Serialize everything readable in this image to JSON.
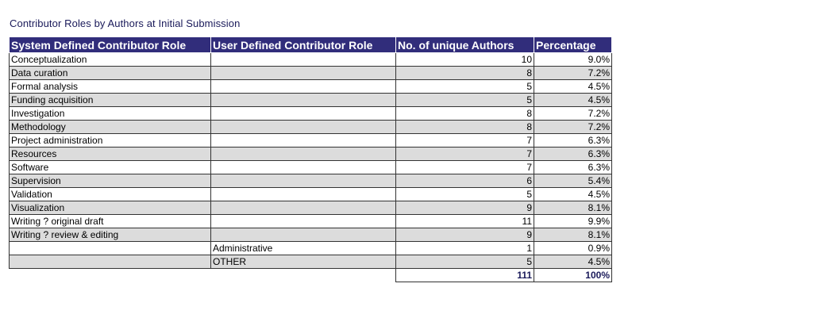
{
  "title": "Contributor Roles by Authors at Initial Submission",
  "table": {
    "headers": [
      "System Defined Contributor Role",
      "User Defined Contributor Role",
      "No. of unique Authors",
      "Percentage"
    ],
    "rows": [
      {
        "system_role": "Conceptualization",
        "user_role": "",
        "authors": "10",
        "percentage": "9.0%"
      },
      {
        "system_role": "Data curation",
        "user_role": "",
        "authors": "8",
        "percentage": "7.2%"
      },
      {
        "system_role": "Formal analysis",
        "user_role": "",
        "authors": "5",
        "percentage": "4.5%"
      },
      {
        "system_role": "Funding acquisition",
        "user_role": "",
        "authors": "5",
        "percentage": "4.5%"
      },
      {
        "system_role": "Investigation",
        "user_role": "",
        "authors": "8",
        "percentage": "7.2%"
      },
      {
        "system_role": "Methodology",
        "user_role": "",
        "authors": "8",
        "percentage": "7.2%"
      },
      {
        "system_role": "Project administration",
        "user_role": "",
        "authors": "7",
        "percentage": "6.3%"
      },
      {
        "system_role": "Resources",
        "user_role": "",
        "authors": "7",
        "percentage": "6.3%"
      },
      {
        "system_role": "Software",
        "user_role": "",
        "authors": "7",
        "percentage": "6.3%"
      },
      {
        "system_role": "Supervision",
        "user_role": "",
        "authors": "6",
        "percentage": "5.4%"
      },
      {
        "system_role": "Validation",
        "user_role": "",
        "authors": "5",
        "percentage": "4.5%"
      },
      {
        "system_role": "Visualization",
        "user_role": "",
        "authors": "9",
        "percentage": "8.1%"
      },
      {
        "system_role": "Writing ? original draft",
        "user_role": "",
        "authors": "11",
        "percentage": "9.9%"
      },
      {
        "system_role": "Writing ? review & editing",
        "user_role": "",
        "authors": "9",
        "percentage": "8.1%"
      },
      {
        "system_role": "",
        "user_role": "Administrative",
        "authors": "1",
        "percentage": "0.9%"
      },
      {
        "system_role": "",
        "user_role": "OTHER",
        "authors": "5",
        "percentage": "4.5%"
      }
    ],
    "total": {
      "authors": "111",
      "percentage": "100%"
    }
  }
}
